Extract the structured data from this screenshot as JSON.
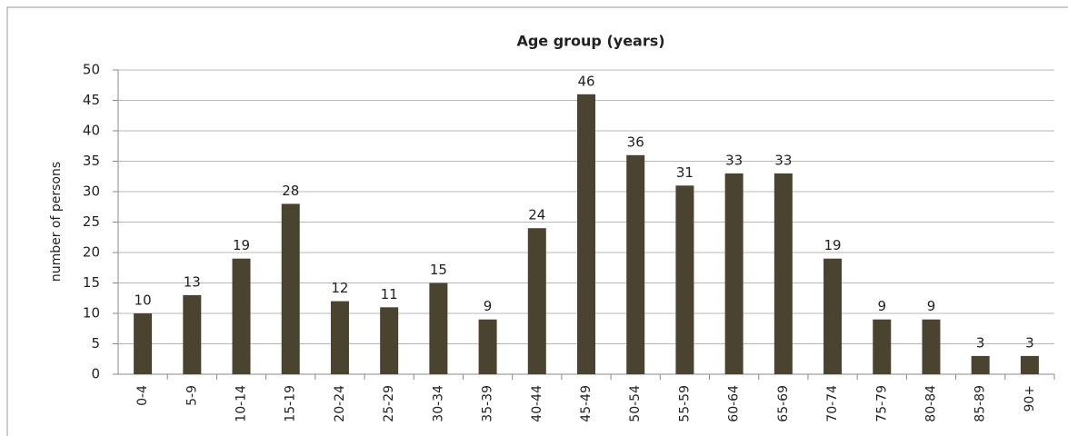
{
  "chart_data": {
    "type": "bar",
    "title": "Age group (years)",
    "y_label": "number of persons",
    "categories": [
      "0-4",
      "5-9",
      "10-14",
      "15-19",
      "20-24",
      "25-29",
      "30-34",
      "35-39",
      "40-44",
      "45-49",
      "50-54",
      "55-59",
      "60-64",
      "65-69",
      "70-74",
      "75-79",
      "80-84",
      "85-89",
      "90+"
    ],
    "values": [
      10,
      13,
      19,
      28,
      12,
      11,
      15,
      9,
      24,
      46,
      36,
      31,
      33,
      33,
      19,
      9,
      9,
      3,
      3
    ],
    "color": "#4a4330",
    "ylim": [
      0,
      50
    ],
    "yticks": [
      0,
      5,
      10,
      15,
      20,
      25,
      30,
      35,
      40,
      45,
      50
    ],
    "grid": true
  }
}
